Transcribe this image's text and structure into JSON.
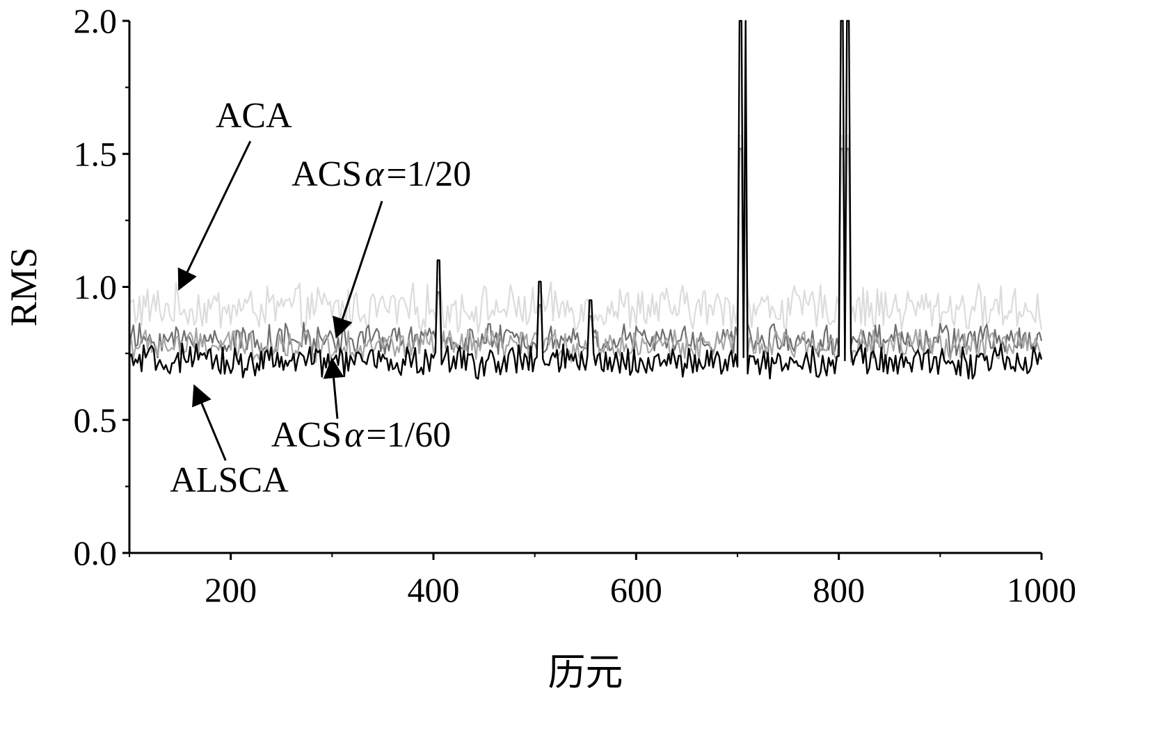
{
  "chart_data": {
    "type": "line",
    "xlabel": "历元",
    "ylabel": "RMS",
    "xlim": [
      100,
      1000
    ],
    "ylim": [
      0.0,
      2.0
    ],
    "x_ticks": [
      200,
      400,
      600,
      800,
      1000
    ],
    "x_tick_labels": [
      "200",
      "400",
      "600",
      "800",
      "1000"
    ],
    "y_ticks": [
      0.0,
      0.5,
      1.0,
      1.5,
      2.0
    ],
    "y_tick_labels": [
      "0.0",
      "0.5",
      "1.0",
      "1.5",
      "2.0"
    ],
    "grid": false,
    "legend": "none",
    "series": [
      {
        "key": "aca",
        "color": "#dcdcdc",
        "base": 0.92,
        "amp": 0.07
      },
      {
        "key": "acs20",
        "color": "#6e6e6e",
        "base": 0.8,
        "amp": 0.05
      },
      {
        "key": "acs60",
        "color": "#a6a6a6",
        "base": 0.78,
        "amp": 0.05
      },
      {
        "key": "alsca",
        "color": "#000000",
        "base": 0.72,
        "amp": 0.05
      }
    ],
    "spikes": [
      {
        "x": 405,
        "y": 1.1
      },
      {
        "x": 505,
        "y": 1.02
      },
      {
        "x": 555,
        "y": 0.95
      },
      {
        "x": 703,
        "y": 2.0
      },
      {
        "x": 708,
        "y": 2.0
      },
      {
        "x": 803,
        "y": 2.0
      },
      {
        "x": 809,
        "y": 2.0
      }
    ],
    "annotations": [
      {
        "key": "ann_aca",
        "label": "ACA",
        "tx": 185,
        "ty": 1.6,
        "ax": 150,
        "ay": 1.0
      },
      {
        "key": "ann_acs20",
        "label_prefix": "ACS",
        "label_alpha": "α",
        "label_suffix": "=1/20",
        "tx": 260,
        "ty": 1.38,
        "ax": 305,
        "ay": 0.82
      },
      {
        "key": "ann_acs60",
        "label_prefix": "ACS",
        "label_alpha": "α",
        "label_suffix": "=1/60",
        "tx": 240,
        "ty": 0.4,
        "ax": 300,
        "ay": 0.72
      },
      {
        "key": "ann_alsca",
        "label": "ALSCA",
        "tx": 140,
        "ty": 0.23,
        "ax": 165,
        "ay": 0.62
      }
    ]
  }
}
